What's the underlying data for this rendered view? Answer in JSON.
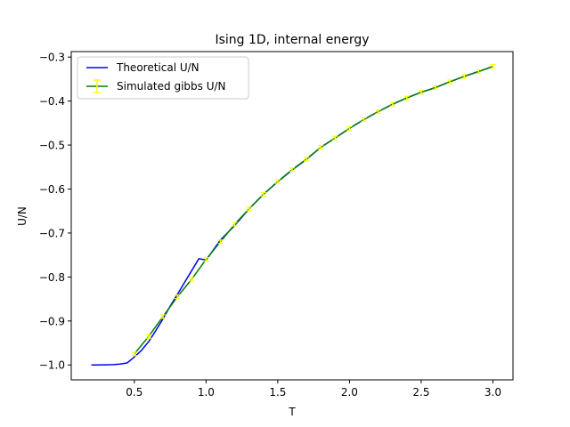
{
  "chart_data": {
    "type": "line",
    "title": "Ising 1D, internal energy",
    "xlabel": "T",
    "ylabel": "U/N",
    "xlim": [
      0.06,
      3.14
    ],
    "ylim": [
      -1.0339,
      -0.2875
    ],
    "x_ticks": [
      0.5,
      1.0,
      1.5,
      2.0,
      2.5,
      3.0
    ],
    "x_tick_labels": [
      "0.5",
      "1.0",
      "1.5",
      "2.0",
      "2.5",
      "3.0"
    ],
    "y_ticks": [
      -1.0,
      -0.9,
      -0.8,
      -0.7,
      -0.6,
      -0.5,
      -0.4,
      -0.3
    ],
    "y_tick_labels": [
      "−1.0",
      "−0.9",
      "−0.8",
      "−0.7",
      "−0.6",
      "−0.5",
      "−0.4",
      "−0.3"
    ],
    "grid": false,
    "legend_position": "upper-left",
    "series": [
      {
        "name": "Theoretical U/N",
        "color": "#0000ff",
        "kind": "line",
        "x": [
          0.2,
          0.25,
          0.3,
          0.35,
          0.4,
          0.45,
          0.5,
          0.55,
          0.6,
          0.65,
          0.7,
          0.75,
          0.8,
          0.85,
          0.9,
          0.95,
          1.0,
          1.1,
          1.2,
          1.3,
          1.4,
          1.5,
          1.6,
          1.7,
          1.8,
          1.9,
          2.0,
          2.1,
          2.2,
          2.3,
          2.4,
          2.5,
          2.6,
          2.7,
          2.8,
          2.9,
          3.0
        ],
        "y": [
          -1.0,
          -1.0,
          -0.9998,
          -0.9993,
          -0.9981,
          -0.9954,
          -0.982,
          -0.9667,
          -0.9468,
          -0.9217,
          -0.8951,
          -0.866,
          -0.8397,
          -0.8123,
          -0.7855,
          -0.7582,
          -0.7616,
          -0.716,
          -0.6828,
          -0.645,
          -0.612,
          -0.5834,
          -0.5568,
          -0.5325,
          -0.5051,
          -0.4839,
          -0.4621,
          -0.4423,
          -0.4238,
          -0.4074,
          -0.3925,
          -0.3799,
          -0.3694,
          -0.3562,
          -0.3438,
          -0.3326,
          -0.3215
        ]
      },
      {
        "name": "Simulated gibbs U/N",
        "color": "#008000",
        "error_color": "#ffff00",
        "kind": "errorbar",
        "x": [
          0.5,
          0.6,
          0.7,
          0.8,
          0.9,
          1.0,
          1.1,
          1.2,
          1.3,
          1.4,
          1.5,
          1.6,
          1.7,
          1.8,
          1.9,
          2.0,
          2.1,
          2.2,
          2.3,
          2.4,
          2.5,
          2.6,
          2.7,
          2.8,
          2.9,
          3.0
        ],
        "y": [
          -0.975,
          -0.935,
          -0.89,
          -0.845,
          -0.805,
          -0.76,
          -0.72,
          -0.68,
          -0.645,
          -0.612,
          -0.583,
          -0.556,
          -0.532,
          -0.505,
          -0.484,
          -0.462,
          -0.442,
          -0.424,
          -0.407,
          -0.393,
          -0.38,
          -0.369,
          -0.356,
          -0.344,
          -0.333,
          -0.321
        ],
        "yerr": [
          0.004,
          0.004,
          0.004,
          0.004,
          0.004,
          0.004,
          0.004,
          0.004,
          0.004,
          0.004,
          0.004,
          0.004,
          0.004,
          0.004,
          0.004,
          0.004,
          0.004,
          0.004,
          0.004,
          0.004,
          0.004,
          0.004,
          0.004,
          0.004,
          0.004,
          0.004
        ]
      }
    ]
  }
}
